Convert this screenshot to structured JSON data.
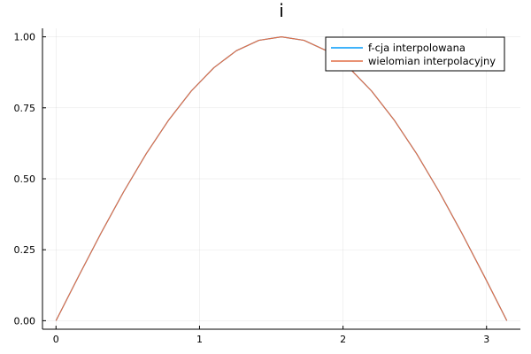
{
  "chart_data": {
    "type": "line",
    "title": "i",
    "xlabel": "",
    "ylabel": "",
    "xlim": [
      -0.0942,
      3.2358
    ],
    "ylim": [
      -0.03,
      1.03
    ],
    "xticks": [
      0,
      1,
      2,
      3
    ],
    "xtick_labels": [
      "0",
      "1",
      "2",
      "3"
    ],
    "yticks": [
      0,
      0.25,
      0.5,
      0.75,
      1
    ],
    "ytick_labels": [
      "0.00",
      "0.25",
      "0.50",
      "0.75",
      "1.00"
    ],
    "grid": true,
    "legend_position": "top-right",
    "x": [
      0,
      0.1571,
      0.3142,
      0.4712,
      0.6283,
      0.7854,
      0.9425,
      1.0996,
      1.2566,
      1.4137,
      1.5708,
      1.7279,
      1.885,
      2.042,
      2.1991,
      2.3562,
      2.5133,
      2.6704,
      2.8274,
      2.9845,
      3.1416
    ],
    "series": [
      {
        "name": "f-cja interpolowana",
        "color": "#009AFA",
        "values": [
          0,
          0.1564,
          0.309,
          0.454,
          0.5878,
          0.7071,
          0.809,
          0.891,
          0.9511,
          0.9877,
          1,
          0.9877,
          0.9511,
          0.891,
          0.809,
          0.7071,
          0.5878,
          0.454,
          0.309,
          0.1564,
          0
        ]
      },
      {
        "name": "wielomian interpolacyjny",
        "color": "#E26F46",
        "values": [
          0,
          0.1564,
          0.309,
          0.454,
          0.5878,
          0.7071,
          0.809,
          0.891,
          0.9511,
          0.9877,
          1,
          0.9877,
          0.9511,
          0.891,
          0.809,
          0.7071,
          0.5878,
          0.454,
          0.309,
          0.1564,
          0
        ]
      }
    ]
  }
}
